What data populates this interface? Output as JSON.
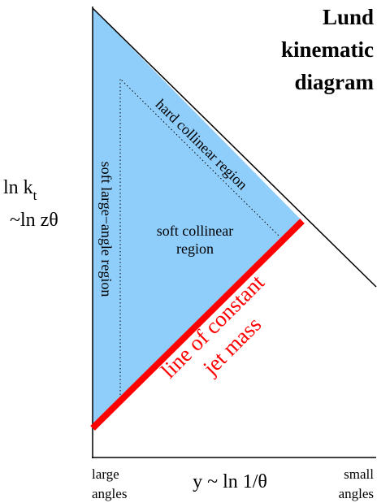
{
  "title": {
    "lines": [
      "Lund",
      "kinematic",
      "diagram"
    ]
  },
  "y_axis": {
    "label": "ln k",
    "subscript": "t",
    "label_2": "~ln zθ"
  },
  "x_axis": {
    "label": "y ~ ln 1/θ",
    "left": [
      "large",
      "angles"
    ],
    "right": [
      "small",
      "angles"
    ]
  },
  "regions": {
    "hard_collinear": "hard collinear region",
    "soft_large_angle": "soft large−angle region",
    "soft_collinear": [
      "soft collinear",
      "region"
    ]
  },
  "jet_mass_line": [
    "line of constant",
    "jet mass"
  ]
}
